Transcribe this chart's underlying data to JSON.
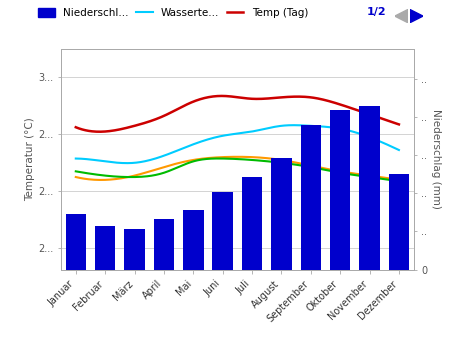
{
  "months": [
    "Januar",
    "Februar",
    "März",
    "April",
    "Mai",
    "Juni",
    "Juli",
    "August",
    "September",
    "Oktober",
    "November",
    "Dezember"
  ],
  "precipitation_mm": [
    58,
    46,
    43,
    53,
    63,
    82,
    97,
    117,
    152,
    168,
    172,
    100
  ],
  "temp_day": [
    28.5,
    28.2,
    28.6,
    29.3,
    30.3,
    30.7,
    30.5,
    30.6,
    30.6,
    30.1,
    29.4,
    28.7
  ],
  "water_temp": [
    26.3,
    26.1,
    26.0,
    26.5,
    27.3,
    27.9,
    28.2,
    28.6,
    28.6,
    28.4,
    27.8,
    26.9
  ],
  "sunshine": [
    25.0,
    24.8,
    25.1,
    25.7,
    26.2,
    26.4,
    26.4,
    26.2,
    25.8,
    25.4,
    25.1,
    24.8
  ],
  "green_vals": [
    25.4,
    25.1,
    25.0,
    25.3,
    26.1,
    26.3,
    26.2,
    26.0,
    25.7,
    25.3,
    25.0,
    24.7
  ],
  "bar_color": "#0000CC",
  "temp_color": "#CC0000",
  "water_color": "#00CCFF",
  "sunshine_color": "#FF9900",
  "green_color": "#00BB00",
  "legend_labels": [
    "Niederschl...",
    "Wasserte...",
    "Temp (Tag)"
  ],
  "left_ylabel": "Temperatur (°C)",
  "right_ylabel": "Niederschlag (mm)",
  "left_yticks": [
    20,
    24,
    28,
    32
  ],
  "left_yticklabels": [
    "2...",
    "2...",
    "2...",
    "3..."
  ],
  "right_yticks": [
    0,
    40,
    80,
    120,
    160,
    200
  ],
  "right_yticklabels": [
    "0",
    "..",
    "..",
    "..",
    "..",
    ".."
  ],
  "ylim_left": [
    18.5,
    34.0
  ],
  "ylim_right": [
    0,
    232
  ],
  "background_color": "#FFFFFF",
  "grid_color": "#CCCCCC",
  "nav_label": "1/2",
  "nav_color": "#0000CC",
  "arrow_left_color": "#AAAAAA",
  "arrow_right_color": "#0000CC"
}
